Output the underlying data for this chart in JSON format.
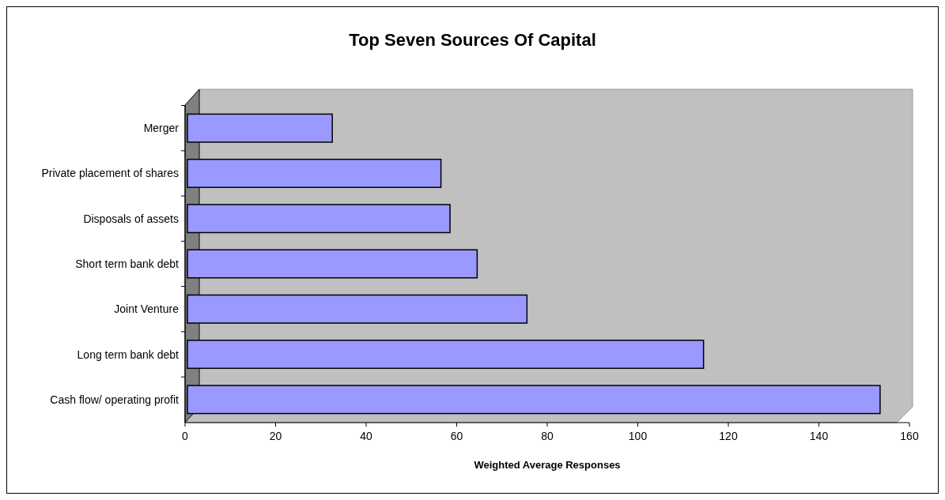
{
  "chart_data": {
    "type": "bar",
    "orientation": "horizontal",
    "title": "Top Seven Sources Of Capital",
    "xlabel": "Weighted Average Responses",
    "categories": [
      "Merger",
      "Private placement of shares",
      "Disposals of assets",
      "Short term bank debt",
      "Joint Venture",
      "Long term bank debt",
      "Cash flow/ operating profit"
    ],
    "values": [
      32,
      56,
      58,
      64,
      75,
      114,
      153
    ],
    "color": "#9999ff",
    "xlim": [
      0,
      160
    ],
    "xticks": [
      0,
      20,
      40,
      60,
      80,
      100,
      120,
      140,
      160
    ],
    "grid": false
  }
}
